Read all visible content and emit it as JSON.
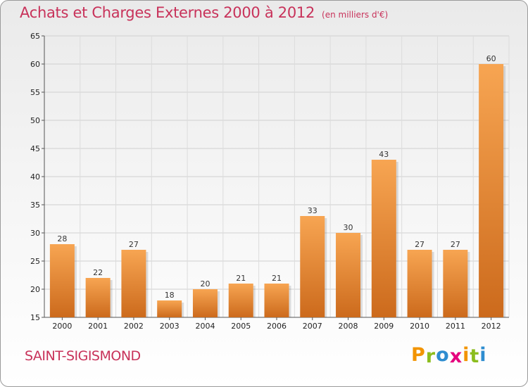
{
  "header": {
    "title": "Achats et Charges Externes 2000 à 2012",
    "subtitle": "(en milliers d'€)"
  },
  "footer": {
    "commune": "SAINT-SIGISMOND",
    "logo_letters": [
      "P",
      "r",
      "o",
      "x",
      "i",
      "t",
      "i"
    ],
    "logo_colors": [
      "#f29400",
      "#8cbd1e",
      "#2e8dd0",
      "#e5007e",
      "#f29400",
      "#8cbd1e",
      "#2e8dd0"
    ]
  },
  "chart_data": {
    "type": "bar",
    "title": "Achats et Charges Externes 2000 à 2012",
    "subtitle": "(en milliers d'€)",
    "categories": [
      "2000",
      "2001",
      "2002",
      "2003",
      "2004",
      "2005",
      "2006",
      "2007",
      "2008",
      "2009",
      "2010",
      "2011",
      "2012"
    ],
    "values": [
      28,
      22,
      27,
      18,
      20,
      21,
      21,
      33,
      30,
      43,
      27,
      27,
      60
    ],
    "ylim": [
      15,
      65
    ],
    "yticks": [
      15,
      20,
      25,
      30,
      35,
      40,
      45,
      50,
      55,
      60,
      65
    ],
    "grid": true,
    "bar_color_top": "#f7a552",
    "bar_color_bottom": "#cc6a1c"
  }
}
